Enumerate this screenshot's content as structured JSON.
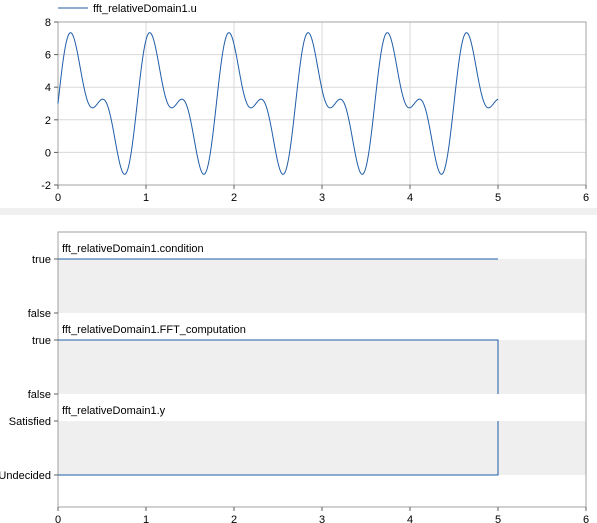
{
  "colors": {
    "series": "#1f5da8",
    "axis": "#a0a0a0",
    "grid": "#d8d8d8",
    "band": "#efefef",
    "divider": "#f0f0f0"
  },
  "chart_data": [
    {
      "type": "line",
      "legend": "fft_relativeDomain1.u",
      "legend_position": "top-left",
      "xlim": [
        0,
        6
      ],
      "ylim": [
        -2,
        8
      ],
      "x_ticks": [
        "0",
        "1",
        "2",
        "3",
        "4",
        "5",
        "6"
      ],
      "y_ticks": [
        "-2",
        "0",
        "2",
        "4",
        "6",
        "8"
      ],
      "grid": true,
      "series": [
        {
          "name": "fft_relativeDomain1.u",
          "definition": "3 + 3 sin(2π·10/9·t) + 2 sin(2π·20/9·t)",
          "x_range": [
            0,
            5
          ]
        }
      ]
    },
    {
      "type": "line",
      "title": "fft_relativeDomain1.condition",
      "y_ticks": [
        "true",
        "false"
      ],
      "xlim": [
        0,
        6
      ],
      "grid": false,
      "series": [
        {
          "name": "fft_relativeDomain1.condition",
          "x": [
            0,
            5
          ],
          "y": [
            "true",
            "true"
          ]
        }
      ]
    },
    {
      "type": "line",
      "title": "fft_relativeDomain1.FFT_computation",
      "y_ticks": [
        "true",
        "false"
      ],
      "xlim": [
        0,
        6
      ],
      "grid": false,
      "series": [
        {
          "name": "fft_relativeDomain1.FFT_computation",
          "x": [
            0,
            5,
            5
          ],
          "y": [
            "true",
            "true",
            "false"
          ]
        }
      ]
    },
    {
      "type": "line",
      "title": "fft_relativeDomain1.y",
      "y_ticks": [
        "Satisfied",
        "Undecided"
      ],
      "xlim": [
        0,
        6
      ],
      "grid": false,
      "series": [
        {
          "name": "fft_relativeDomain1.y",
          "x": [
            0,
            5,
            5
          ],
          "y": [
            "Undecided",
            "Undecided",
            "Satisfied"
          ]
        }
      ]
    }
  ],
  "bottom_axis": {
    "x_ticks": [
      "0",
      "1",
      "2",
      "3",
      "4",
      "5",
      "6"
    ]
  }
}
